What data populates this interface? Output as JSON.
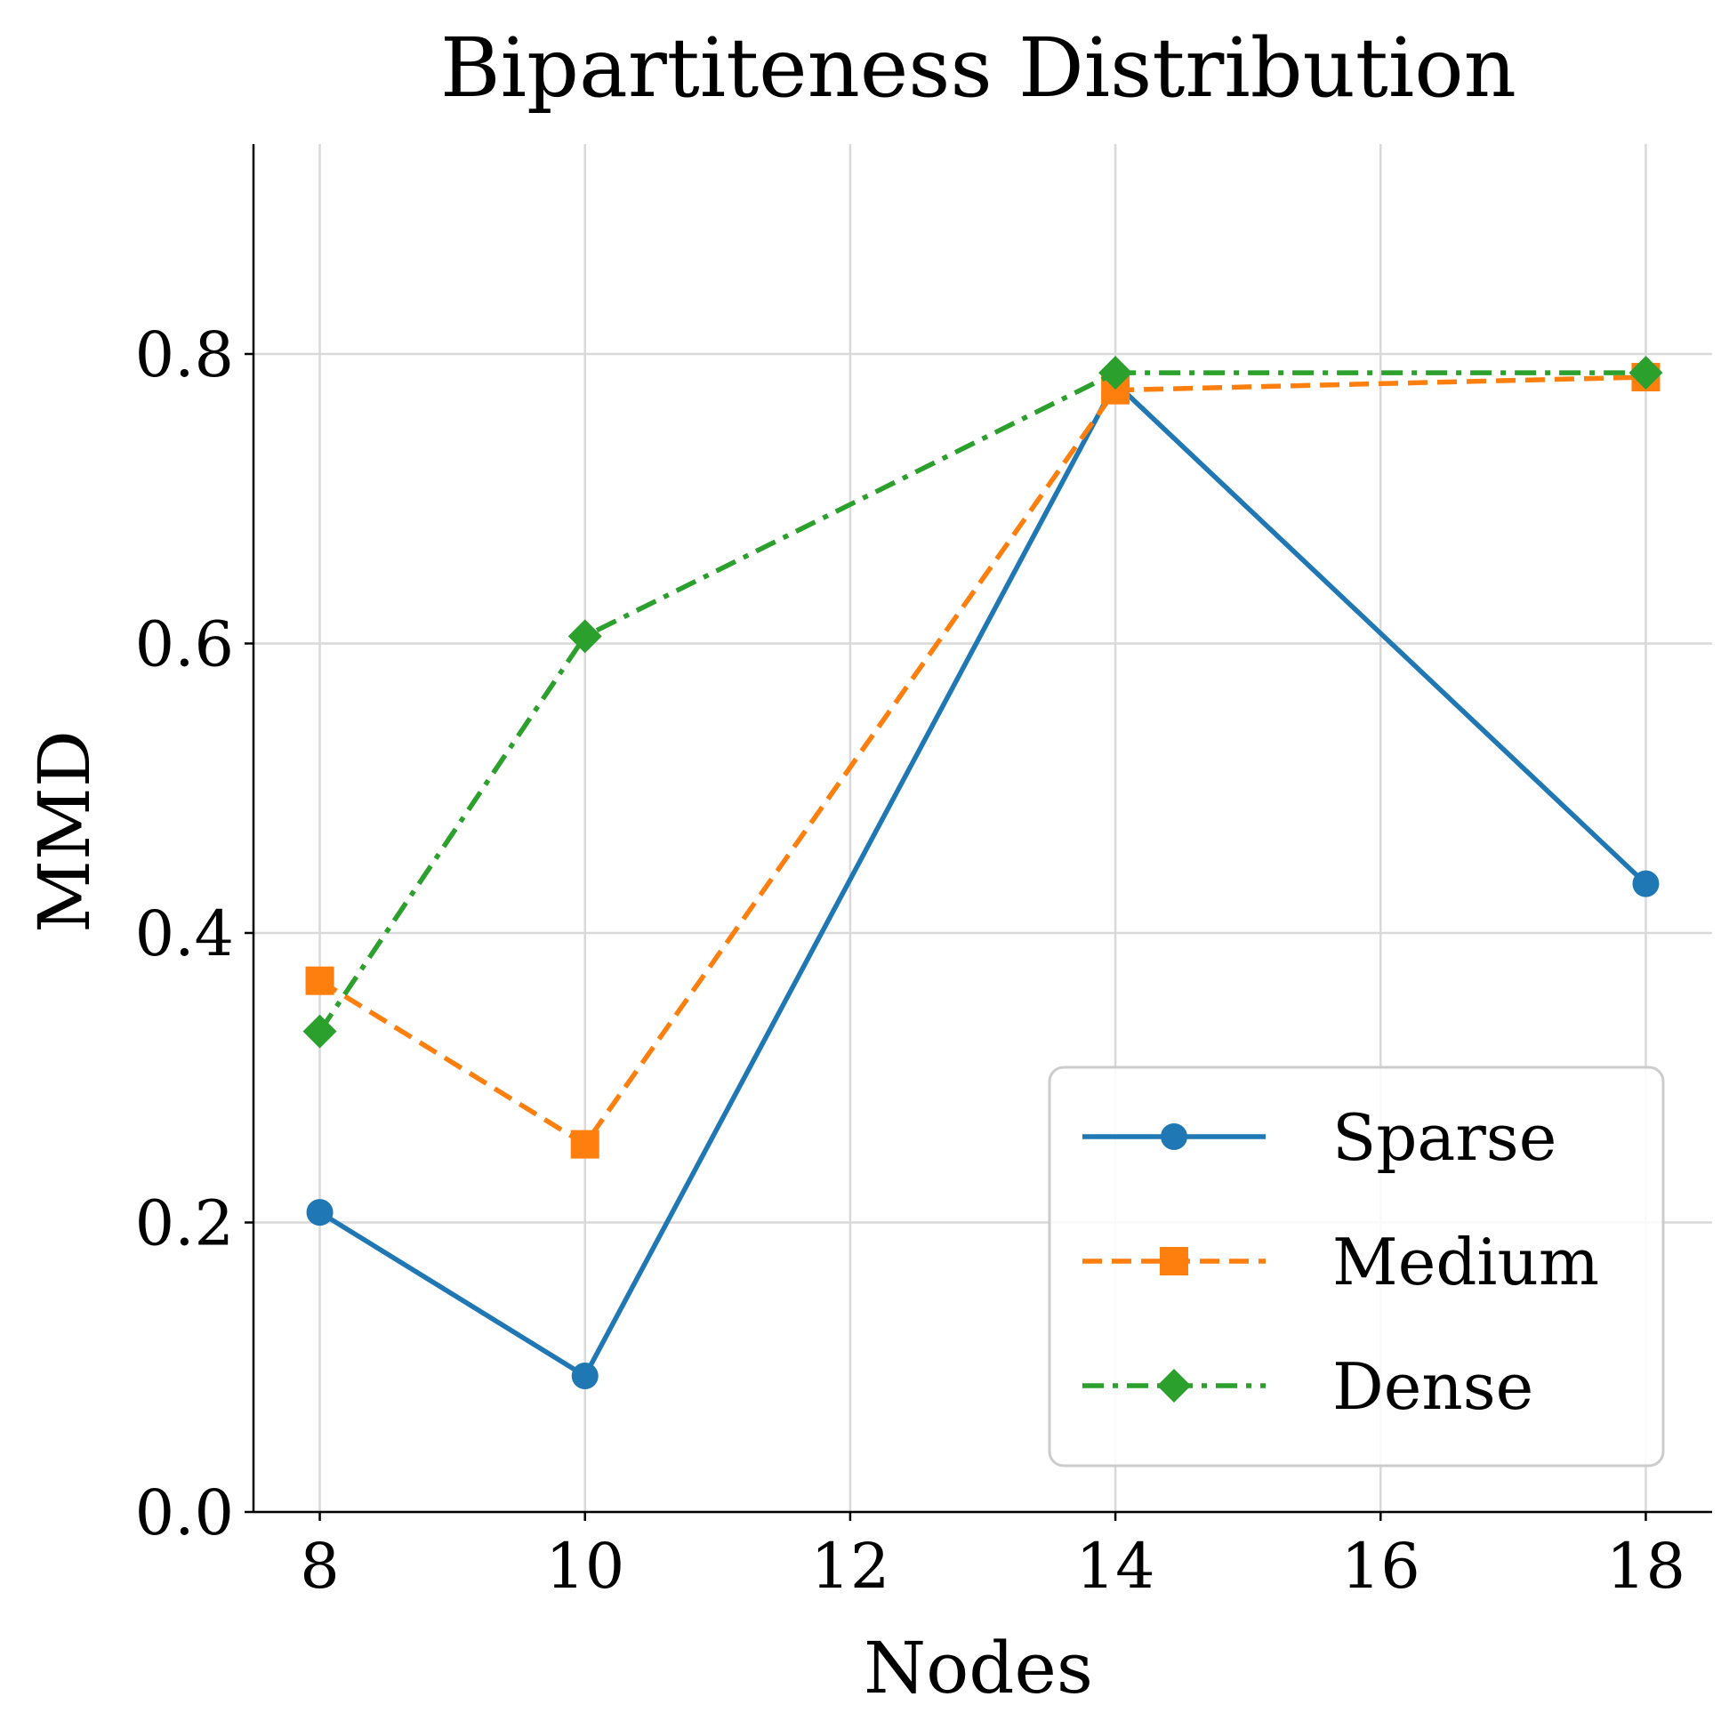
{
  "chart_data": {
    "type": "line",
    "title": "Bipartiteness Distribution",
    "xlabel": "Nodes",
    "ylabel": "MMD",
    "x": [
      8,
      10,
      14,
      18
    ],
    "xlim": [
      7.5,
      18.5
    ],
    "ylim": [
      0,
      0.945
    ],
    "xticks": [
      8,
      10,
      12,
      14,
      16,
      18
    ],
    "xtick_labels": [
      "8",
      "10",
      "12",
      "14",
      "16",
      "18"
    ],
    "yticks": [
      0.0,
      0.2,
      0.4,
      0.6,
      0.8
    ],
    "ytick_labels": [
      "0.0",
      "0.2",
      "0.4",
      "0.6",
      "0.8"
    ],
    "grid": true,
    "legend_position": "lower-right",
    "series": [
      {
        "name": "Sparse",
        "values": [
          0.207,
          0.094,
          0.78,
          0.434
        ],
        "color": "#1f77b4",
        "marker": "circle",
        "line_style": "solid"
      },
      {
        "name": "Medium",
        "values": [
          0.367,
          0.254,
          0.775,
          0.784
        ],
        "color": "#ff7f0e",
        "marker": "square",
        "line_style": "dashed"
      },
      {
        "name": "Dense",
        "values": [
          0.332,
          0.605,
          0.787,
          0.787
        ],
        "color": "#2ca02c",
        "marker": "diamond",
        "line_style": "dashdot"
      }
    ]
  }
}
